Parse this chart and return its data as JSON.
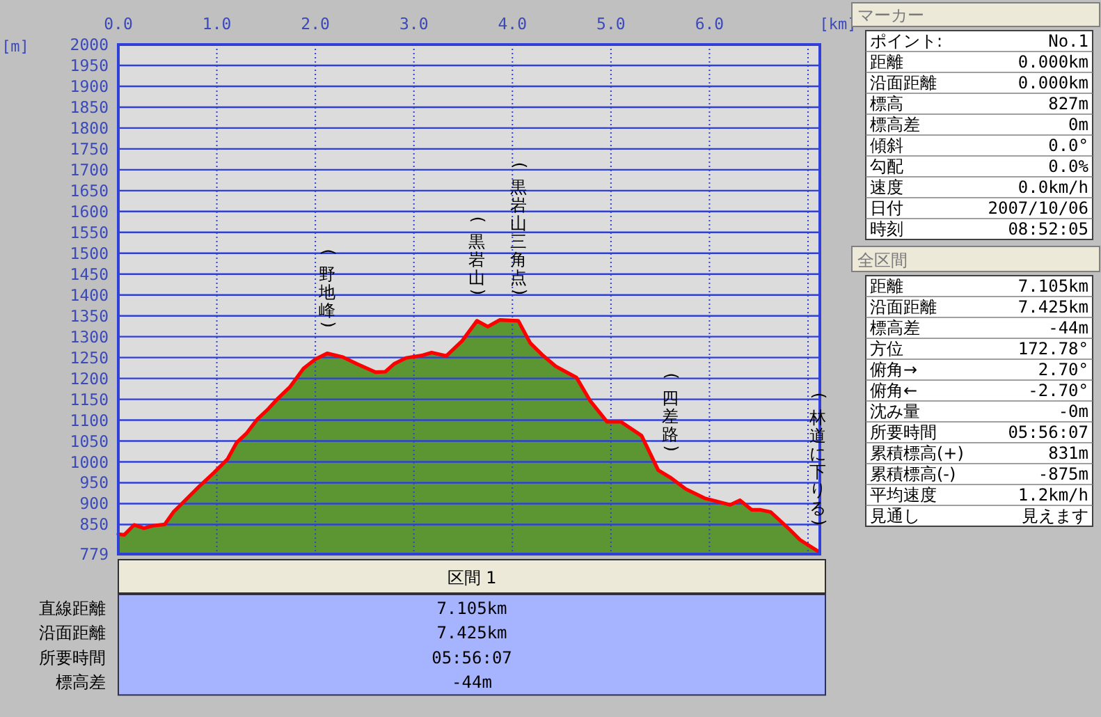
{
  "chart_data": [
    {
      "type": "area",
      "xlabel": "[km]",
      "ylabel": "[m]",
      "grid": true,
      "xlim": [
        0,
        7.12
      ],
      "ylim": [
        779,
        2000
      ],
      "xticks": [
        {
          "value": 0,
          "label": "0.0"
        },
        {
          "value": 1,
          "label": "1.0"
        },
        {
          "value": 2,
          "label": "2.0"
        },
        {
          "value": 3,
          "label": "3.0"
        },
        {
          "value": 4,
          "label": "4.0"
        },
        {
          "value": 5,
          "label": "5.0"
        },
        {
          "value": 6,
          "label": "6.0"
        },
        {
          "value": 7,
          "label": null
        }
      ],
      "yticks": [
        779,
        850,
        900,
        950,
        1000,
        1050,
        1100,
        1150,
        1200,
        1250,
        1300,
        1350,
        1400,
        1450,
        1500,
        1550,
        1600,
        1650,
        1700,
        1750,
        1800,
        1850,
        1900,
        1950,
        2000
      ],
      "x": [
        0,
        0.06,
        0.16,
        0.26,
        0.35,
        0.47,
        0.56,
        0.68,
        0.82,
        0.97,
        1.11,
        1.2,
        1.3,
        1.41,
        1.51,
        1.62,
        1.74,
        1.88,
        2.0,
        2.12,
        2.28,
        2.42,
        2.61,
        2.71,
        2.8,
        2.92,
        3.08,
        3.18,
        3.33,
        3.49,
        3.64,
        3.75,
        3.87,
        4.06,
        4.18,
        4.3,
        4.44,
        4.65,
        4.79,
        4.96,
        5.1,
        5.31,
        5.48,
        5.6,
        5.76,
        5.95,
        6.21,
        6.31,
        6.43,
        6.52,
        6.62,
        6.8,
        6.92,
        7.1
      ],
      "series": [
        {
          "type": "area",
          "color": "#5b9632",
          "values": [
            827,
            825,
            849,
            841,
            847,
            850,
            880,
            908,
            941,
            974,
            1007,
            1046,
            1068,
            1102,
            1124,
            1152,
            1179,
            1224,
            1246,
            1260,
            1251,
            1235,
            1215,
            1216,
            1235,
            1249,
            1255,
            1262,
            1254,
            1290,
            1338,
            1324,
            1340,
            1338,
            1285,
            1257,
            1229,
            1202,
            1146,
            1096,
            1096,
            1063,
            980,
            963,
            935,
            913,
            897,
            908,
            885,
            885,
            880,
            841,
            813,
            786
          ]
        },
        {
          "type": "line",
          "color": "#ff0000",
          "values": [
            827,
            825,
            849,
            841,
            847,
            850,
            880,
            908,
            941,
            974,
            1007,
            1046,
            1068,
            1102,
            1124,
            1152,
            1179,
            1224,
            1246,
            1260,
            1251,
            1235,
            1215,
            1216,
            1235,
            1249,
            1255,
            1262,
            1254,
            1290,
            1338,
            1324,
            1340,
            1338,
            1285,
            1257,
            1229,
            1202,
            1146,
            1096,
            1096,
            1063,
            980,
            963,
            935,
            913,
            897,
            908,
            885,
            885,
            880,
            841,
            813,
            786
          ]
        }
      ],
      "annotations": [
        {
          "text": "(野地峰)",
          "x": 2.12,
          "y": 1260
        },
        {
          "text": "(黒岩山)",
          "x": 3.64,
          "y": 1338
        },
        {
          "text": "(黒岩山三角点)",
          "x": 4.06,
          "y": 1338
        },
        {
          "text": "(四差路)",
          "x": 5.6,
          "y": 963
        },
        {
          "text": "(林道に下りる)",
          "x": 7.1,
          "y": 786
        }
      ]
    },
    {
      "type": "other",
      "title": "マーカー",
      "annotations": [
        "ポイント:",
        "No.1",
        "距離",
        "0.000km",
        "沿面距離",
        "0.000km",
        "標高",
        "827m",
        "標高差",
        "0m",
        "傾斜",
        "0.0°",
        "勾配",
        "0.0%",
        "速度",
        "0.0km/h",
        "日付",
        "2007/10/06",
        "時刻",
        "08:52:05"
      ]
    },
    {
      "type": "other",
      "title": "全区間",
      "annotations": [
        "距離",
        "7.105km",
        "沿面距離",
        "7.425km",
        "標高差",
        "-44m",
        "方位",
        "172.78°",
        "俯角→",
        "2.70°",
        "俯角←",
        "-2.70°",
        "沈み量",
        "-0m",
        "所要時間",
        "05:56:07",
        "累積標高(+)",
        "831m",
        "累積標高(-)",
        "-875m",
        "平均速度",
        "1.2km/h",
        "見通し",
        "見えます"
      ]
    },
    {
      "type": "other",
      "title": "区間 1",
      "annotations": [
        "直線距離",
        "7.105km",
        "沿面距離",
        "7.425km",
        "所要時間",
        "05:56:07",
        "標高差",
        "-44m"
      ]
    }
  ]
}
